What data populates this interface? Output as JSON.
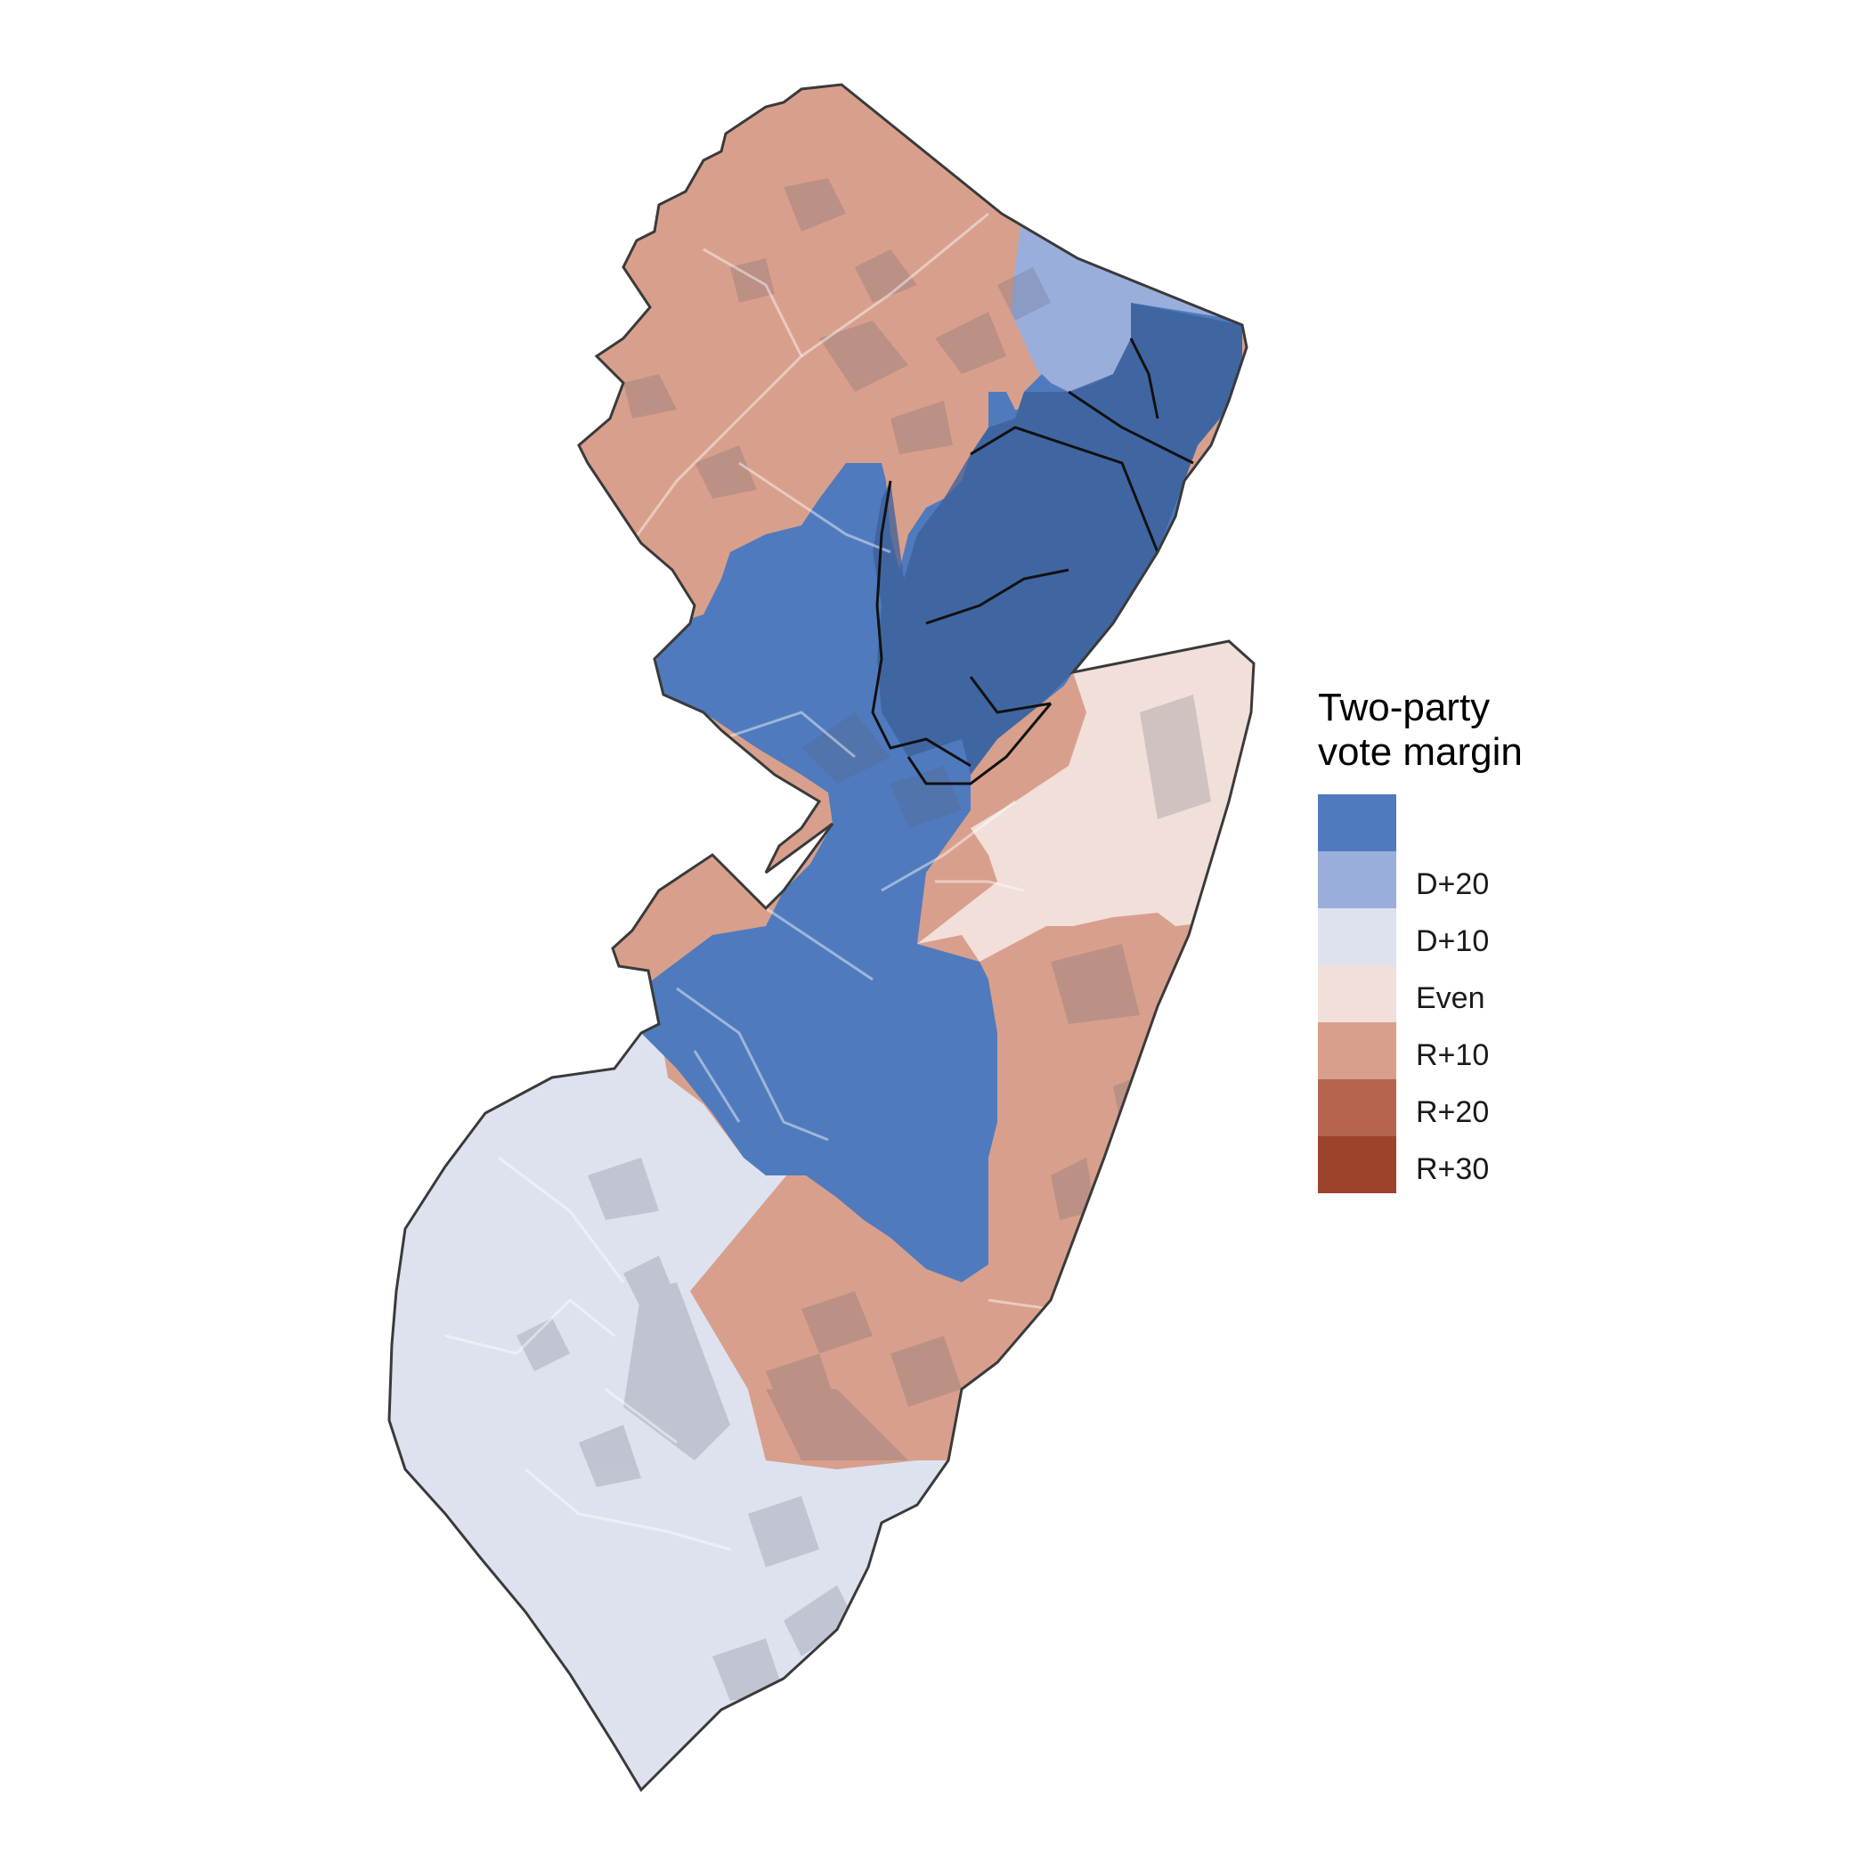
{
  "legend": {
    "title_line1": "Two-party",
    "title_line2": "vote margin",
    "bins": [
      {
        "color": "#4f7bbe",
        "label": ""
      },
      {
        "color": "#9aaedb",
        "label": "D+20"
      },
      {
        "color": "#dee2ef",
        "label": "D+10"
      },
      {
        "color": "#f1dfd9",
        "label": "Even"
      },
      {
        "color": "#d8a08c",
        "label": "R+10"
      },
      {
        "color": "#b5654d",
        "label": "R+20"
      },
      {
        "color": "#9e432b",
        "label": "R+30"
      }
    ]
  },
  "map": {
    "districts": [
      {
        "id": "north-west",
        "margin": "R+10",
        "color": "#d8a08c"
      },
      {
        "id": "north-east",
        "margin": "D+20",
        "color": "#9aaedb"
      },
      {
        "id": "north-urban",
        "margin": ">D+20",
        "color": "#4f7bbe"
      },
      {
        "id": "central",
        "margin": ">D+20",
        "color": "#4f7bbe"
      },
      {
        "id": "central-shore",
        "margin": "Even",
        "color": "#f1dfd9"
      },
      {
        "id": "south-central",
        "margin": ">D+20",
        "color": "#4f7bbe"
      },
      {
        "id": "south-shore",
        "margin": "R+10",
        "color": "#d8a08c"
      },
      {
        "id": "south",
        "margin": "D+10",
        "color": "#dee2ef"
      }
    ],
    "urban_overlay_color": "#5a5a6e",
    "boundary_color": "#3a3a3a"
  }
}
